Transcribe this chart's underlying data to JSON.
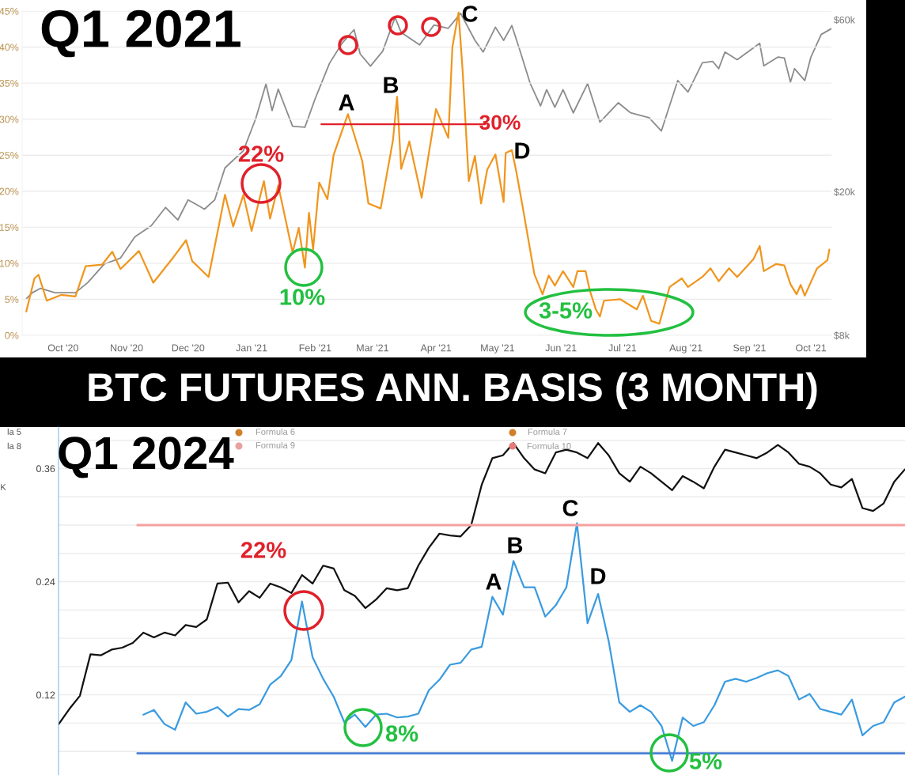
{
  "chart_data": [
    {
      "type": "line",
      "title": "Q1 2021",
      "xlim": [
        "2020-09-11",
        "2021-10-11"
      ],
      "xticks": [
        {
          "value": "2020-10-01",
          "label": "Oct '20"
        },
        {
          "value": "2020-11-01",
          "label": "Nov '20"
        },
        {
          "value": "2020-12-01",
          "label": "Dec '20"
        },
        {
          "value": "2021-01-01",
          "label": "Jan '21"
        },
        {
          "value": "2021-02-01",
          "label": "Feb '21"
        },
        {
          "value": "2021-03-01",
          "label": "Mar '21"
        },
        {
          "value": "2021-04-01",
          "label": "Apr '21"
        },
        {
          "value": "2021-05-01",
          "label": "May '21"
        },
        {
          "value": "2021-06-01",
          "label": "Jun '21"
        },
        {
          "value": "2021-07-01",
          "label": "Jul '21"
        },
        {
          "value": "2021-08-01",
          "label": "Aug '21"
        },
        {
          "value": "2021-09-01",
          "label": "Sep '21"
        },
        {
          "value": "2021-10-01",
          "label": "Oct '21"
        }
      ],
      "ylim": [
        0,
        45
      ],
      "yticks": [
        {
          "value": 0,
          "label": "0%"
        },
        {
          "value": 5,
          "label": "5%"
        },
        {
          "value": 10,
          "label": "10%"
        },
        {
          "value": 15,
          "label": "15%"
        },
        {
          "value": 20,
          "label": "20%"
        },
        {
          "value": 25,
          "label": "25%"
        },
        {
          "value": 30,
          "label": "30%"
        },
        {
          "value": 35,
          "label": "35%"
        },
        {
          "value": 40,
          "label": "40%"
        },
        {
          "value": 45,
          "label": "45%"
        }
      ],
      "y2lim": [
        8000,
        63400
      ],
      "y2ticks": [
        {
          "value": 8000,
          "label": "$8k"
        },
        {
          "value": 20000,
          "label": "$20k"
        },
        {
          "value": 60000,
          "label": "$60k"
        }
      ],
      "log": "y2",
      "grid": "y",
      "series": [
        {
          "color": "#8c8c8c",
          "axis": "y2",
          "x": [
            "2020-09-13",
            "2020-09-16",
            "2020-09-20",
            "2020-09-27",
            "2020-10-07",
            "2020-10-13",
            "2020-10-21",
            "2020-10-29",
            "2020-11-05",
            "2020-11-13",
            "2020-11-20",
            "2020-11-26",
            "2020-12-01",
            "2020-12-09",
            "2020-12-14",
            "2020-12-19",
            "2020-12-28",
            "2021-01-03",
            "2021-01-08",
            "2021-01-11",
            "2021-01-14",
            "2021-01-21",
            "2021-01-27",
            "2021-02-01",
            "2021-02-08",
            "2021-02-14",
            "2021-02-20",
            "2021-02-23",
            "2021-02-28",
            "2021-03-06",
            "2021-03-12",
            "2021-03-15",
            "2021-03-24",
            "2021-03-31",
            "2021-04-07",
            "2021-04-13",
            "2021-04-20",
            "2021-04-24",
            "2021-04-30",
            "2021-05-04",
            "2021-05-08",
            "2021-05-12",
            "2021-05-17",
            "2021-05-22",
            "2021-05-25",
            "2021-05-29",
            "2021-06-02",
            "2021-06-07",
            "2021-06-14",
            "2021-06-20",
            "2021-06-29",
            "2021-07-05",
            "2021-07-14",
            "2021-07-20",
            "2021-07-28",
            "2021-08-02",
            "2021-08-09",
            "2021-08-14",
            "2021-08-17",
            "2021-08-20",
            "2021-08-26",
            "2021-09-06",
            "2021-09-08",
            "2021-09-15",
            "2021-09-18",
            "2021-09-21",
            "2021-09-23",
            "2021-09-28",
            "2021-10-01",
            "2021-10-06",
            "2021-10-11"
          ],
          "values": [
            10100,
            10500,
            10800,
            10500,
            10500,
            11200,
            12600,
            13100,
            15000,
            16100,
            18100,
            16700,
            19000,
            17900,
            19000,
            23300,
            26000,
            31900,
            39800,
            33600,
            38500,
            30400,
            30200,
            36200,
            45400,
            51500,
            56300,
            48200,
            44600,
            49100,
            60900,
            55300,
            51100,
            58000,
            56800,
            62500,
            52600,
            48800,
            57200,
            52600,
            57800,
            49200,
            39900,
            34600,
            38400,
            34300,
            38400,
            33100,
            39900,
            31200,
            35300,
            33100,
            32100,
            29500,
            40700,
            37800,
            45600,
            46000,
            43900,
            48800,
            46500,
            51600,
            44700,
            47300,
            47000,
            40300,
            43900,
            40700,
            47300,
            54600,
            56700
          ]
        },
        {
          "color": "#f0961e",
          "x": [
            "2020-09-13",
            "2020-09-17",
            "2020-09-19",
            "2020-09-23",
            "2020-09-30",
            "2020-10-07",
            "2020-10-12",
            "2020-10-20",
            "2020-10-25",
            "2020-10-29",
            "2020-11-07",
            "2020-11-14",
            "2020-11-24",
            "2020-11-30",
            "2020-12-03",
            "2020-12-11",
            "2020-12-19",
            "2020-12-23",
            "2020-12-28",
            "2021-01-01",
            "2021-01-07",
            "2021-01-10",
            "2021-01-14",
            "2021-01-21",
            "2021-01-24",
            "2021-01-27",
            "2021-01-29",
            "2021-01-31",
            "2021-02-03",
            "2021-02-07",
            "2021-02-10",
            "2021-02-17",
            "2021-02-24",
            "2021-02-27",
            "2021-03-05",
            "2021-03-11",
            "2021-03-13",
            "2021-03-15",
            "2021-03-19",
            "2021-03-25",
            "2021-04-01",
            "2021-04-07",
            "2021-04-09",
            "2021-04-12",
            "2021-04-14",
            "2021-04-17",
            "2021-04-20",
            "2021-04-23",
            "2021-04-26",
            "2021-04-30",
            "2021-05-04",
            "2021-05-05",
            "2021-05-08",
            "2021-05-10",
            "2021-05-13",
            "2021-05-16",
            "2021-05-19",
            "2021-05-23",
            "2021-05-26",
            "2021-05-29",
            "2021-06-02",
            "2021-06-07",
            "2021-06-09",
            "2021-06-13",
            "2021-06-15",
            "2021-06-18",
            "2021-06-20",
            "2021-06-22",
            "2021-06-30",
            "2021-07-08",
            "2021-07-11",
            "2021-07-15",
            "2021-07-19",
            "2021-07-24",
            "2021-07-30",
            "2021-08-02",
            "2021-08-09",
            "2021-08-13",
            "2021-08-17",
            "2021-08-22",
            "2021-08-26",
            "2021-09-03",
            "2021-09-06",
            "2021-09-08",
            "2021-09-14",
            "2021-09-18",
            "2021-09-21",
            "2021-09-24",
            "2021-09-26",
            "2021-09-28",
            "2021-10-04",
            "2021-10-09",
            "2021-10-10"
          ],
          "values": [
            3.3,
            7.9,
            8.4,
            4.8,
            5.6,
            5.4,
            9.6,
            9.8,
            11.6,
            9.2,
            11.7,
            7.3,
            10.9,
            13.2,
            10.3,
            8.1,
            19.5,
            15.1,
            19.5,
            14.5,
            21.4,
            16.2,
            20.8,
            11.5,
            14.9,
            9.4,
            17.0,
            11.9,
            21.2,
            18.9,
            25.0,
            30.7,
            24.2,
            18.3,
            17.6,
            27.1,
            33.1,
            23.1,
            26.9,
            19.1,
            31.4,
            27.4,
            40.0,
            44.8,
            36.7,
            21.4,
            24.9,
            18.3,
            23.0,
            25.1,
            18.5,
            25.3,
            25.7,
            23.0,
            18.3,
            13.4,
            8.5,
            5.7,
            8.3,
            6.9,
            8.9,
            6.7,
            8.9,
            8.9,
            6.3,
            3.6,
            2.6,
            4.8,
            5.0,
            3.6,
            5.5,
            2.0,
            1.6,
            6.7,
            7.9,
            6.7,
            8.1,
            9.3,
            7.5,
            9.3,
            8.1,
            10.6,
            12.4,
            8.9,
            9.9,
            9.7,
            7.1,
            5.7,
            7.0,
            5.5,
            9.3,
            10.4,
            11.9
          ]
        },
        {
          "color": "#e0202a",
          "x": [
            "2021-02-04",
            "2021-04-25"
          ],
          "values": [
            29.3,
            29.3
          ]
        }
      ],
      "annotations": [
        "22%",
        "10%",
        "A",
        "B",
        "C",
        "D",
        "30%",
        "3-5%"
      ]
    },
    {
      "type": "line",
      "title": "BTC FUTURES ANN. BASIS (3 MONTH)",
      "subtitle": "Q1 2024",
      "categories": [
        null,
        null,
        null,
        null,
        null,
        null,
        null,
        null,
        null,
        null,
        null,
        null,
        null,
        null,
        null,
        null,
        null,
        null,
        null,
        null,
        null,
        null,
        null,
        null,
        null,
        null,
        null,
        null,
        null,
        null,
        null,
        null,
        null,
        null,
        null,
        null,
        null,
        null,
        null,
        null,
        null,
        null,
        null,
        null,
        null,
        null,
        null,
        null,
        null,
        null,
        null,
        null,
        null,
        null,
        null,
        null,
        null,
        null,
        null,
        null,
        null,
        null,
        null,
        null,
        null,
        null,
        null,
        null,
        null,
        null,
        null,
        null,
        null,
        null,
        null,
        null,
        null,
        null,
        null,
        null,
        null
      ],
      "ylim": [
        0.035,
        0.404
      ],
      "yticks": [
        {
          "value": 0.06,
          "label": null
        },
        {
          "value": 0.09,
          "label": null
        },
        0.12,
        {
          "value": 0.15,
          "label": null
        },
        {
          "value": 0.18,
          "label": null
        },
        {
          "value": 0.21,
          "label": null
        },
        0.24,
        {
          "value": 0.27,
          "label": null
        },
        {
          "value": 0.3,
          "label": null
        },
        {
          "value": 0.33,
          "label": null
        },
        0.36,
        {
          "value": 0.39,
          "label": null
        }
      ],
      "grid": "y",
      "tick_labels": "y",
      "ref_lines": [
        {
          "axis": "y",
          "value": 0.3,
          "color": "#f4a0a0"
        },
        {
          "axis": "y",
          "value": 0.058,
          "color": "#4a7fd4"
        }
      ],
      "series": [
        {
          "color": "#111111",
          "values": [
            0.089,
            0.105,
            0.119,
            0.163,
            0.162,
            0.168,
            0.17,
            0.175,
            0.186,
            0.181,
            0.186,
            0.183,
            0.194,
            0.192,
            0.2,
            0.238,
            0.239,
            0.218,
            0.23,
            0.223,
            0.238,
            0.234,
            0.228,
            0.247,
            0.238,
            0.257,
            0.254,
            0.231,
            0.225,
            0.212,
            0.221,
            0.233,
            0.231,
            0.233,
            0.257,
            0.276,
            0.291,
            0.289,
            0.288,
            0.3,
            0.343,
            0.371,
            0.374,
            0.387,
            0.371,
            0.359,
            0.355,
            0.377,
            0.38,
            0.377,
            0.371,
            0.387,
            0.374,
            0.355,
            0.346,
            0.362,
            0.355,
            0.346,
            0.337,
            0.352,
            0.346,
            0.339,
            0.362,
            0.38,
            0.377,
            0.374,
            0.371,
            0.377,
            0.385,
            0.377,
            0.365,
            0.362,
            0.355,
            0.343,
            0.34,
            0.349,
            0.318,
            0.315,
            0.323,
            0.346,
            0.359
          ]
        },
        {
          "color": "#3a9be0",
          "values": [
            null,
            null,
            null,
            null,
            null,
            null,
            null,
            null,
            0.099,
            0.104,
            0.089,
            0.083,
            0.112,
            0.1,
            0.102,
            0.107,
            0.097,
            0.105,
            0.104,
            0.11,
            0.131,
            0.14,
            0.157,
            0.219,
            0.16,
            0.137,
            0.118,
            0.091,
            0.099,
            0.086,
            0.099,
            0.1,
            0.096,
            0.097,
            0.1,
            0.125,
            0.136,
            0.152,
            0.154,
            0.168,
            0.171,
            0.224,
            0.205,
            0.262,
            0.234,
            0.234,
            0.203,
            0.215,
            0.234,
            0.302,
            0.196,
            0.227,
            0.177,
            0.112,
            0.102,
            0.109,
            0.102,
            0.087,
            0.05,
            0.096,
            0.087,
            0.091,
            0.109,
            0.134,
            0.137,
            0.134,
            0.138,
            0.143,
            0.146,
            0.14,
            0.115,
            0.121,
            0.105,
            0.102,
            0.099,
            0.115,
            0.077,
            0.087,
            0.091,
            0.112,
            0.118
          ]
        }
      ],
      "annotations": [
        "22%",
        "8%",
        "A",
        "B",
        "C",
        "D",
        "5%",
        "Formula 6",
        "Formula 9",
        "Formula 7",
        "Formula 10",
        "la 5",
        "la 8",
        "K"
      ]
    }
  ]
}
